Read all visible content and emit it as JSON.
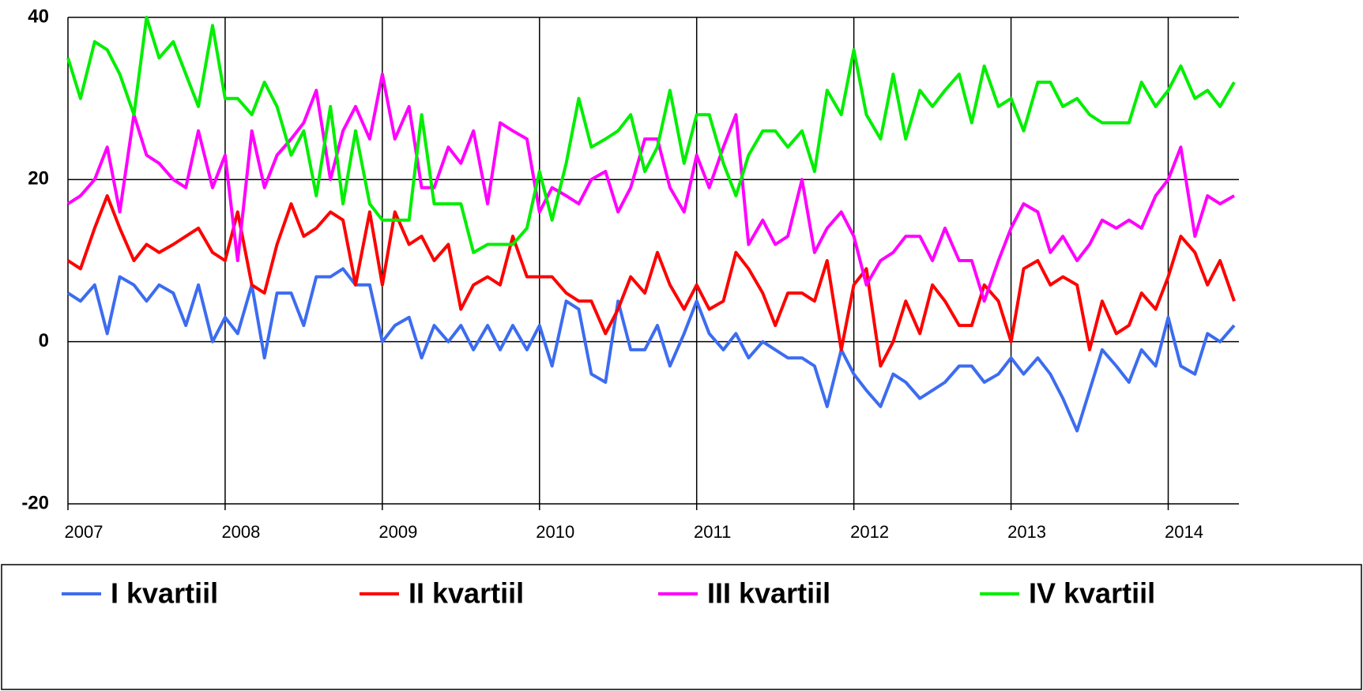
{
  "chart_data": {
    "type": "line",
    "x": [
      2007,
      2007.08,
      2007.17,
      2007.25,
      2007.33,
      2007.42,
      2007.5,
      2007.58,
      2007.67,
      2007.75,
      2007.83,
      2007.92,
      2008,
      2008.08,
      2008.17,
      2008.25,
      2008.33,
      2008.42,
      2008.5,
      2008.58,
      2008.67,
      2008.75,
      2008.83,
      2008.92,
      2009,
      2009.08,
      2009.17,
      2009.25,
      2009.33,
      2009.42,
      2009.5,
      2009.58,
      2009.67,
      2009.75,
      2009.83,
      2009.92,
      2010,
      2010.08,
      2010.17,
      2010.25,
      2010.33,
      2010.42,
      2010.5,
      2010.58,
      2010.67,
      2010.75,
      2010.83,
      2010.92,
      2011,
      2011.08,
      2011.17,
      2011.25,
      2011.33,
      2011.42,
      2011.5,
      2011.58,
      2011.67,
      2011.75,
      2011.83,
      2011.92,
      2012,
      2012.08,
      2012.17,
      2012.25,
      2012.33,
      2012.42,
      2012.5,
      2012.58,
      2012.67,
      2012.75,
      2012.83,
      2012.92,
      2013,
      2013.08,
      2013.17,
      2013.25,
      2013.33,
      2013.42,
      2013.5,
      2013.58,
      2013.67,
      2013.75,
      2013.83,
      2013.92,
      2014,
      2014.08,
      2014.17,
      2014.25,
      2014.33,
      2014.42
    ],
    "series": [
      {
        "name": "I kvartiil",
        "color": "#3c6cf0",
        "values": [
          6,
          5,
          7,
          1,
          8,
          7,
          5,
          7,
          6,
          2,
          7,
          0,
          3,
          1,
          7,
          -2,
          6,
          6,
          2,
          8,
          8,
          9,
          7,
          7,
          0,
          2,
          3,
          -2,
          2,
          0,
          2,
          -1,
          2,
          -1,
          2,
          -1,
          2,
          -3,
          5,
          4,
          -4,
          -5,
          5,
          -1,
          -1,
          2,
          -3,
          1,
          5,
          1,
          -1,
          1,
          -2,
          0,
          -1,
          -2,
          -2,
          -3,
          -8,
          -1,
          -4,
          -6,
          -8,
          -4,
          -5,
          -7,
          -6,
          -5,
          -3,
          -3,
          -5,
          -4,
          -2,
          -4,
          -2,
          -4,
          -7,
          -11,
          -6,
          -1,
          -3,
          -5,
          -1,
          -3,
          3,
          -3,
          -4,
          1,
          0,
          2
        ]
      },
      {
        "name": "II kvartiil",
        "color": "#ff0000",
        "values": [
          10,
          9,
          14,
          18,
          14,
          10,
          12,
          11,
          12,
          13,
          14,
          11,
          10,
          16,
          7,
          6,
          12,
          17,
          13,
          14,
          16,
          15,
          7,
          16,
          7,
          16,
          12,
          13,
          10,
          12,
          4,
          7,
          8,
          7,
          13,
          8,
          8,
          8,
          6,
          5,
          5,
          1,
          4,
          8,
          6,
          11,
          7,
          4,
          7,
          4,
          5,
          11,
          9,
          6,
          2,
          6,
          6,
          5,
          10,
          -1,
          7,
          9,
          -3,
          0,
          5,
          1,
          7,
          5,
          2,
          2,
          7,
          5,
          0,
          9,
          10,
          7,
          8,
          7,
          -1,
          5,
          1,
          2,
          6,
          4,
          8,
          13,
          11,
          7,
          10,
          5
        ]
      },
      {
        "name": "III kvartiil",
        "color": "#ff00ff",
        "values": [
          17,
          18,
          20,
          24,
          16,
          28,
          23,
          22,
          20,
          19,
          26,
          19,
          23,
          10,
          26,
          19,
          23,
          25,
          27,
          31,
          20,
          26,
          29,
          25,
          33,
          25,
          29,
          19,
          19,
          24,
          22,
          26,
          17,
          27,
          26,
          25,
          16,
          19,
          18,
          17,
          20,
          21,
          16,
          19,
          25,
          25,
          19,
          16,
          23,
          19,
          24,
          28,
          12,
          15,
          12,
          13,
          20,
          11,
          14,
          16,
          13,
          7,
          10,
          11,
          13,
          13,
          10,
          14,
          10,
          10,
          5,
          10,
          14,
          17,
          16,
          11,
          13,
          10,
          12,
          15,
          14,
          15,
          14,
          18,
          20,
          24,
          13,
          18,
          17,
          18
        ]
      },
      {
        "name": "IV kvartiil",
        "color": "#00ee00",
        "values": [
          35,
          30,
          37,
          36,
          33,
          28,
          40,
          35,
          37,
          33,
          29,
          39,
          30,
          30,
          28,
          32,
          29,
          23,
          26,
          18,
          29,
          17,
          26,
          17,
          15,
          15,
          15,
          28,
          17,
          17,
          17,
          11,
          12,
          12,
          12,
          14,
          21,
          15,
          22,
          30,
          24,
          25,
          26,
          28,
          21,
          24,
          31,
          22,
          28,
          28,
          22,
          18,
          23,
          26,
          26,
          24,
          26,
          21,
          31,
          28,
          36,
          28,
          25,
          33,
          25,
          31,
          29,
          31,
          33,
          27,
          34,
          29,
          30,
          26,
          32,
          32,
          29,
          30,
          28,
          27,
          27,
          27,
          32,
          29,
          31,
          34,
          30,
          31,
          29,
          32
        ]
      }
    ],
    "xlim": [
      2007,
      2014.45
    ],
    "xticks": [
      2007,
      2008,
      2009,
      2010,
      2011,
      2012,
      2013,
      2014
    ],
    "ylim": [
      -20,
      40
    ],
    "yticks": [
      -20,
      0,
      20,
      40
    ],
    "grid": true,
    "legend": "bottom"
  }
}
